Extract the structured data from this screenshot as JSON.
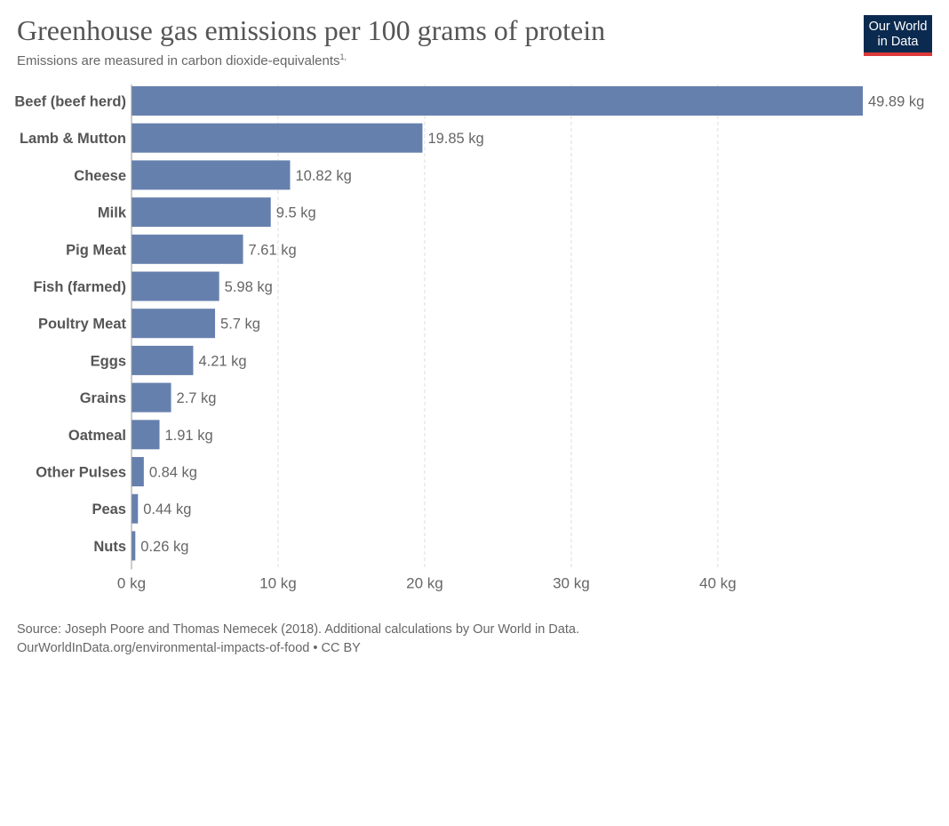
{
  "header": {
    "title": "Greenhouse gas emissions per 100 grams of protein",
    "subtitle": "Emissions are measured in carbon dioxide-equivalents",
    "subtitle_note": "1,"
  },
  "logo": {
    "line1": "Our World",
    "line2": "in Data"
  },
  "footer": {
    "source": "Source: Joseph Poore and Thomas Nemecek (2018). Additional calculations by Our World in Data.",
    "url_line": "OurWorldInData.org/environmental-impacts-of-food • CC BY"
  },
  "colors": {
    "bar": "#6680ae",
    "grid": "#dddddd",
    "logo_bg": "#0b2a4f",
    "logo_accent": "#dc3a3a"
  },
  "chart_data": {
    "type": "bar",
    "orientation": "horizontal",
    "unit": "kg",
    "categories": [
      "Beef (beef herd)",
      "Lamb & Mutton",
      "Cheese",
      "Milk",
      "Pig Meat",
      "Fish (farmed)",
      "Poultry Meat",
      "Eggs",
      "Grains",
      "Oatmeal",
      "Other Pulses",
      "Peas",
      "Nuts"
    ],
    "values": [
      49.89,
      19.85,
      10.82,
      9.5,
      7.61,
      5.98,
      5.7,
      4.21,
      2.7,
      1.91,
      0.84,
      0.44,
      0.26
    ],
    "value_labels": [
      "49.89 kg",
      "19.85 kg",
      "10.82 kg",
      "9.5 kg",
      "7.61 kg",
      "5.98 kg",
      "5.7 kg",
      "4.21 kg",
      "2.7 kg",
      "1.91 kg",
      "0.84 kg",
      "0.44 kg",
      "0.26 kg"
    ],
    "xticks": [
      0,
      10,
      20,
      30,
      40
    ],
    "xtick_labels": [
      "0 kg",
      "10 kg",
      "20 kg",
      "30 kg",
      "40 kg"
    ],
    "xlim": [
      0,
      49.89
    ],
    "grid": true,
    "legend": "none"
  }
}
